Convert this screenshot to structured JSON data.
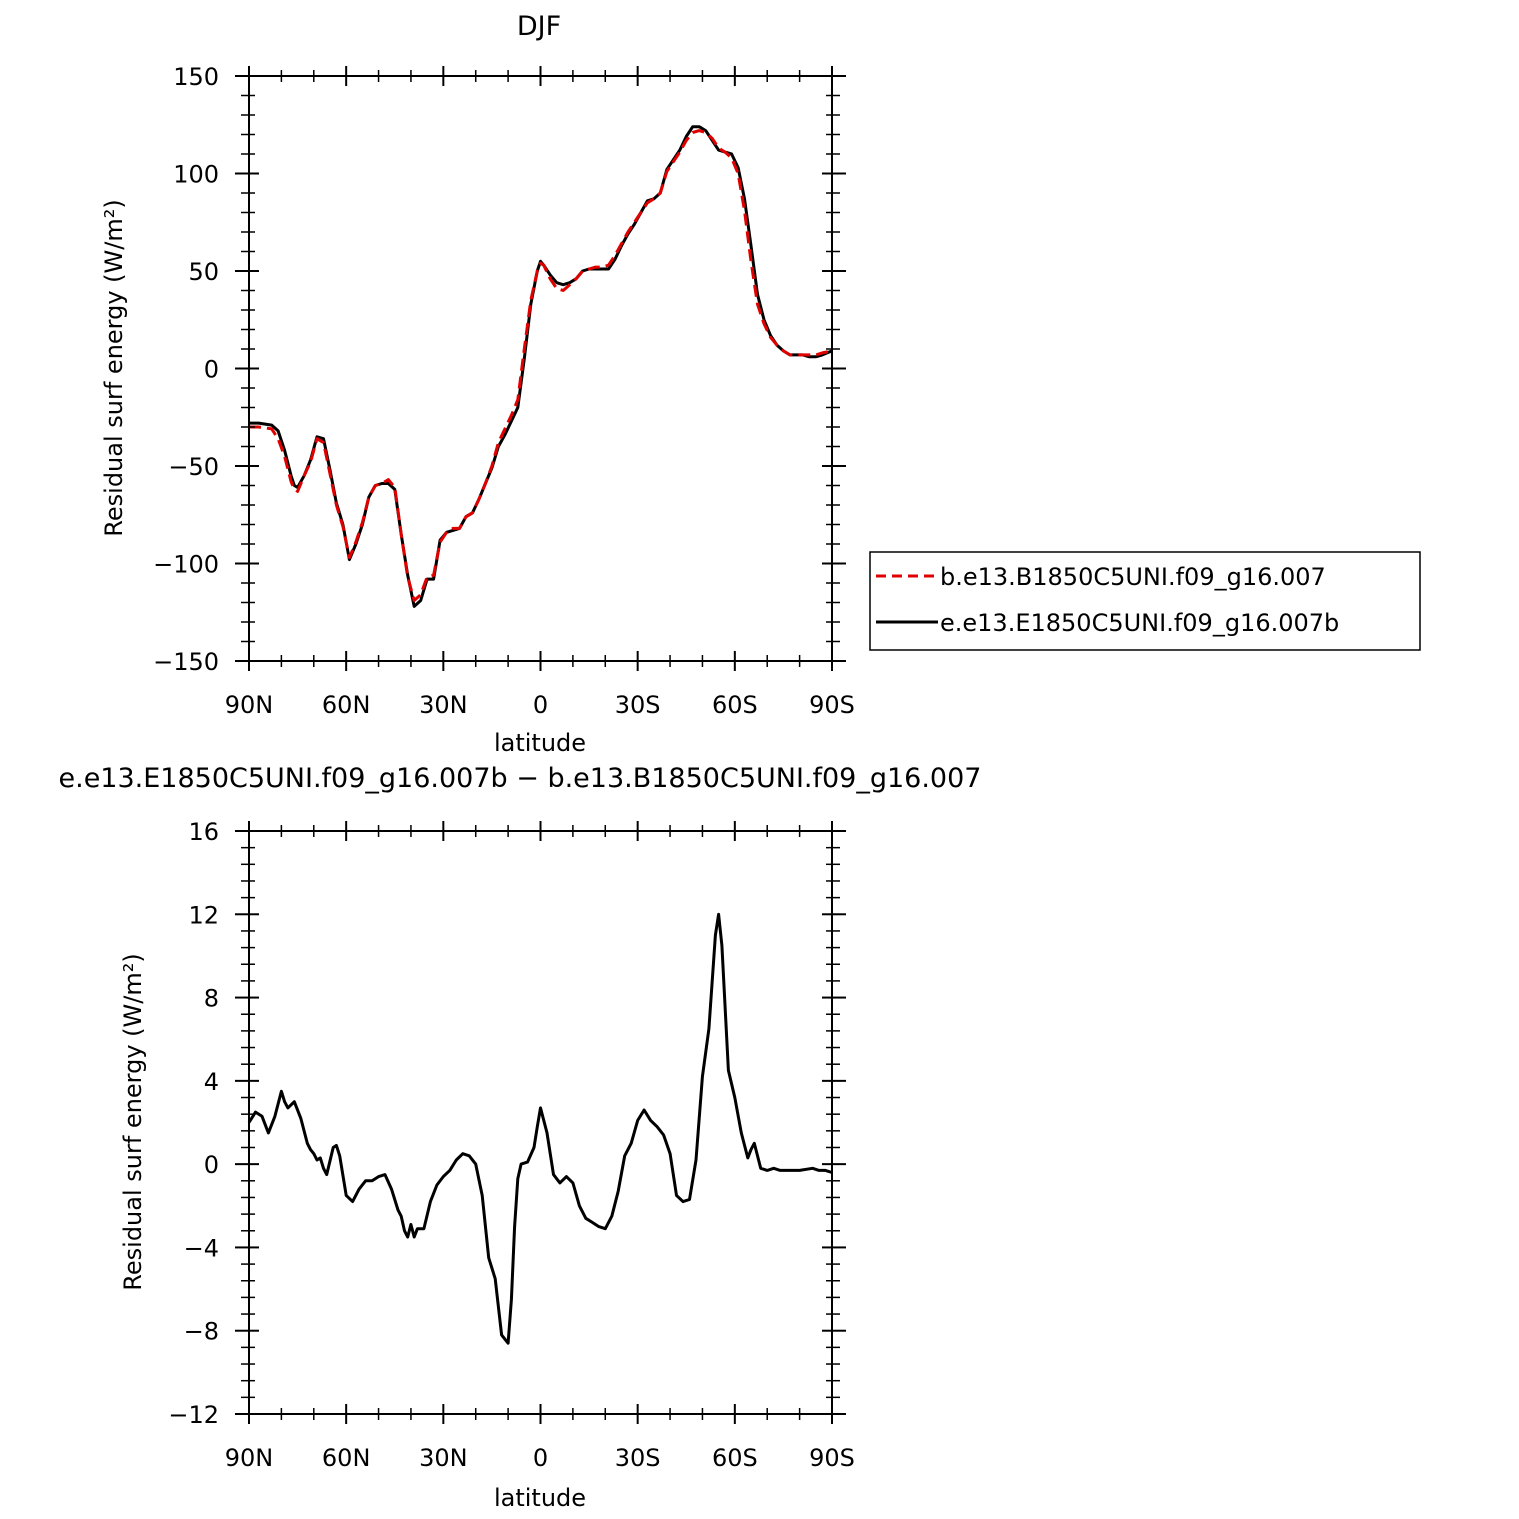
{
  "chart_data": [
    {
      "type": "line",
      "title": "DJF",
      "xlabel": "latitude",
      "ylabel": "Residual surf energy (W/m²)",
      "xlim": [
        90,
        -90
      ],
      "ylim": [
        -150,
        150
      ],
      "xticks": [
        90,
        60,
        30,
        0,
        -30,
        -60,
        -90
      ],
      "xtick_labels": [
        "90N",
        "60N",
        "30N",
        "0",
        "30S",
        "60S",
        "90S"
      ],
      "yticks": [
        -150,
        -100,
        -50,
        0,
        50,
        100,
        150
      ],
      "ytick_labels": [
        "−150",
        "−100",
        "−50",
        "0",
        "50",
        "100",
        "150"
      ],
      "grid": false,
      "legend": "outside-right",
      "series": [
        {
          "name": "b.e13.B1850C5UNI.f09_g16.007",
          "color": "#e00000",
          "dash": true,
          "x": [
            90,
            87,
            83,
            81,
            79,
            77,
            76,
            75,
            73,
            71,
            69,
            67,
            65,
            63,
            61,
            59,
            57,
            55,
            53,
            51,
            49,
            47,
            45,
            43,
            41,
            39,
            37,
            35,
            33,
            31,
            29,
            27,
            25,
            23,
            21,
            19,
            17,
            15,
            13,
            11,
            9,
            7,
            5,
            3,
            1,
            0,
            -1,
            -3,
            -5,
            -7,
            -9,
            -11,
            -13,
            -15,
            -17,
            -19,
            -21,
            -23,
            -25,
            -27,
            -29,
            -31,
            -33,
            -35,
            -37,
            -39,
            -41,
            -43,
            -45,
            -47,
            -49,
            -51,
            -53,
            -55,
            -57,
            -59,
            -61,
            -63,
            -65,
            -67,
            -69,
            -71,
            -73,
            -75,
            -77,
            -79,
            -81,
            -83,
            -85,
            -87,
            -90
          ],
          "y": [
            -30,
            -30,
            -31,
            -36,
            -45,
            -58,
            -62,
            -63,
            -55,
            -48,
            -36,
            -38,
            -54,
            -70,
            -81,
            -97,
            -89,
            -79,
            -66,
            -60,
            -59,
            -57,
            -61,
            -85,
            -107,
            -119,
            -116,
            -107,
            -106,
            -89,
            -84,
            -82,
            -82,
            -76,
            -74,
            -67,
            -59,
            -50,
            -38,
            -31,
            -24,
            -16,
            10,
            35,
            50,
            54,
            53,
            46,
            41,
            40,
            43,
            46,
            50,
            51,
            52,
            52,
            53,
            58,
            64,
            70,
            75,
            80,
            85,
            87,
            90,
            101,
            106,
            111,
            117,
            121,
            122,
            121,
            118,
            113,
            111,
            108,
            100,
            81,
            55,
            33,
            23,
            16,
            12,
            9,
            7,
            7,
            7,
            7,
            7,
            8,
            9
          ]
        },
        {
          "name": "e.e13.E1850C5UNI.f09_g16.007b",
          "color": "#000000",
          "dash": false,
          "x": [
            90,
            87,
            83,
            81,
            79,
            77,
            76,
            75,
            73,
            71,
            69,
            67,
            65,
            63,
            61,
            59,
            57,
            55,
            53,
            51,
            49,
            47,
            45,
            43,
            41,
            39,
            37,
            35,
            33,
            31,
            29,
            27,
            25,
            23,
            21,
            19,
            17,
            15,
            13,
            11,
            9,
            7,
            5,
            3,
            1,
            0,
            -1,
            -3,
            -5,
            -7,
            -9,
            -11,
            -13,
            -15,
            -17,
            -19,
            -21,
            -23,
            -25,
            -27,
            -29,
            -31,
            -33,
            -35,
            -37,
            -39,
            -41,
            -43,
            -45,
            -47,
            -49,
            -51,
            -53,
            -55,
            -57,
            -59,
            -61,
            -63,
            -65,
            -67,
            -69,
            -71,
            -73,
            -75,
            -77,
            -79,
            -81,
            -83,
            -85,
            -87,
            -90
          ],
          "y": [
            -28,
            -28,
            -29,
            -32,
            -42,
            -55,
            -60,
            -61,
            -55,
            -47,
            -35,
            -36,
            -52,
            -69,
            -80,
            -98,
            -90,
            -80,
            -66,
            -60,
            -59,
            -59,
            -62,
            -85,
            -106,
            -122,
            -119,
            -108,
            -108,
            -88,
            -84,
            -83,
            -82,
            -76,
            -74,
            -67,
            -59,
            -51,
            -40,
            -34,
            -27,
            -20,
            5,
            33,
            50,
            55,
            53,
            48,
            44,
            43,
            44,
            46,
            50,
            51,
            51,
            51,
            51,
            56,
            63,
            69,
            74,
            80,
            86,
            87,
            90,
            102,
            107,
            112,
            119,
            124,
            124,
            122,
            117,
            112,
            111,
            110,
            103,
            87,
            63,
            38,
            25,
            17,
            12,
            9,
            7,
            7,
            7,
            6,
            6,
            7,
            9
          ]
        }
      ]
    },
    {
      "type": "line",
      "title": "e.e13.E1850C5UNI.f09_g16.007b − b.e13.B1850C5UNI.f09_g16.007",
      "xlabel": "latitude",
      "ylabel": "Residual surf energy (W/m²)",
      "xlim": [
        90,
        -90
      ],
      "ylim": [
        -12,
        16
      ],
      "xticks": [
        90,
        60,
        30,
        0,
        -30,
        -60,
        -90
      ],
      "xtick_labels": [
        "90N",
        "60N",
        "30N",
        "0",
        "30S",
        "60S",
        "90S"
      ],
      "yticks": [
        -12,
        -8,
        -4,
        0,
        4,
        8,
        12,
        16
      ],
      "ytick_labels": [
        "−12",
        "−8",
        "−4",
        "0",
        "4",
        "8",
        "12",
        "16"
      ],
      "grid": false,
      "legend": "none",
      "series": [
        {
          "color": "#000000",
          "dash": false,
          "x": [
            90,
            88,
            86,
            84,
            82,
            80,
            79,
            78,
            76,
            74,
            72,
            71,
            70,
            69,
            68,
            67,
            66,
            64,
            63,
            62,
            60,
            58,
            56,
            54,
            52,
            50,
            48,
            46,
            44,
            43,
            42,
            41,
            40,
            39,
            38,
            36,
            34,
            32,
            30,
            28,
            26,
            24,
            22,
            20,
            18,
            16,
            14,
            12,
            10,
            9,
            8,
            7,
            6,
            4,
            2,
            1,
            0,
            -2,
            -4,
            -6,
            -8,
            -10,
            -12,
            -14,
            -16,
            -18,
            -20,
            -22,
            -24,
            -26,
            -28,
            -30,
            -32,
            -34,
            -36,
            -38,
            -40,
            -42,
            -44,
            -46,
            -48,
            -50,
            -52,
            -54,
            -55,
            -56,
            -58,
            -60,
            -62,
            -64,
            -65,
            -66,
            -68,
            -70,
            -72,
            -74,
            -75,
            -76,
            -78,
            -80,
            -84,
            -86,
            -88,
            -90
          ],
          "y": [
            2.0,
            2.5,
            2.3,
            1.5,
            2.3,
            3.5,
            3.0,
            2.7,
            3.0,
            2.2,
            1.0,
            0.7,
            0.5,
            0.2,
            0.3,
            -0.2,
            -0.5,
            0.8,
            0.9,
            0.4,
            -1.5,
            -1.8,
            -1.2,
            -0.8,
            -0.8,
            -0.6,
            -0.5,
            -1.2,
            -2.2,
            -2.5,
            -3.2,
            -3.5,
            -2.9,
            -3.5,
            -3.1,
            -3.1,
            -1.8,
            -1.0,
            -0.6,
            -0.3,
            0.2,
            0.5,
            0.4,
            0.0,
            -1.5,
            -4.5,
            -5.5,
            -8.2,
            -8.6,
            -6.5,
            -3.0,
            -0.7,
            0.0,
            0.1,
            0.8,
            1.8,
            2.7,
            1.5,
            -0.5,
            -0.9,
            -0.6,
            -0.9,
            -2.0,
            -2.6,
            -2.8,
            -3.0,
            -3.1,
            -2.5,
            -1.3,
            0.4,
            1.0,
            2.1,
            2.6,
            2.1,
            1.8,
            1.4,
            0.5,
            -1.5,
            -1.8,
            -1.7,
            0.2,
            4.2,
            6.5,
            11.0,
            12.0,
            10.5,
            4.5,
            3.2,
            1.5,
            0.3,
            0.7,
            1.0,
            -0.2,
            -0.3,
            -0.2,
            -0.3,
            -0.3,
            -0.3,
            -0.3,
            -0.3,
            -0.2,
            -0.3,
            -0.3,
            -0.4
          ]
        }
      ]
    }
  ]
}
